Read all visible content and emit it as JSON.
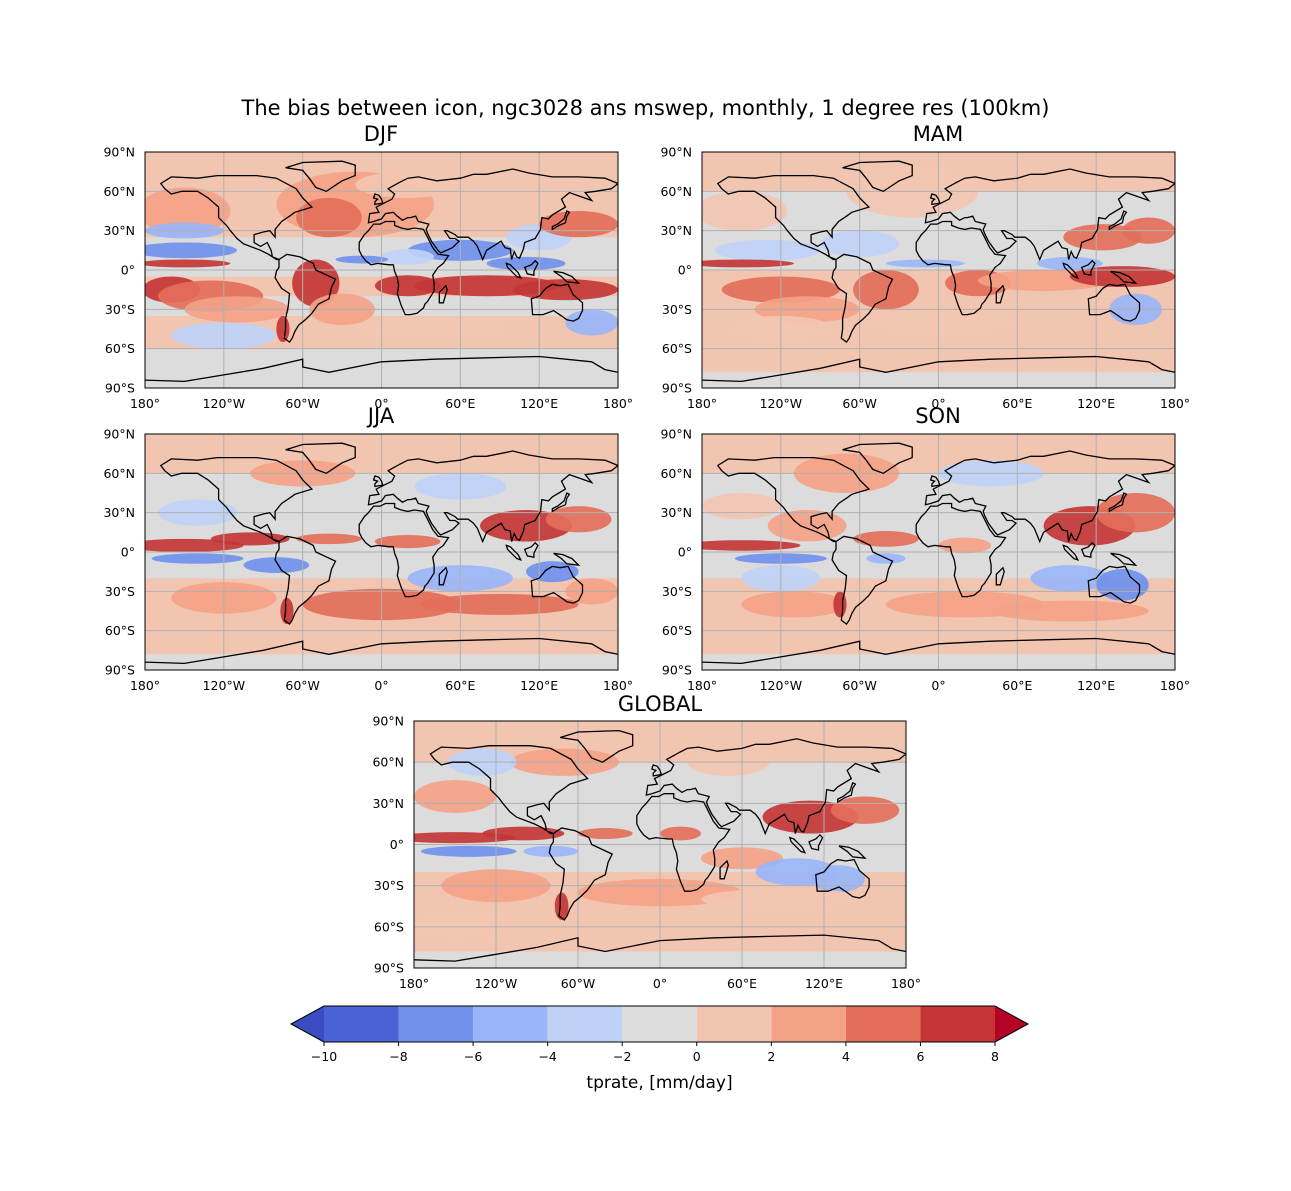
{
  "chart_data": {
    "type": "heatmap",
    "title": "The bias between icon, ngc3028 ans mswep, monthly, 1 degree res (100km)",
    "panels": [
      {
        "title": "DJF",
        "kind": "djf"
      },
      {
        "title": "MAM",
        "kind": "mam"
      },
      {
        "title": "JJA",
        "kind": "jja"
      },
      {
        "title": "SON",
        "kind": "son"
      },
      {
        "title": "GLOBAL",
        "kind": "global"
      }
    ],
    "lon_ticks": [
      "180°",
      "120°W",
      "60°W",
      "0°",
      "60°E",
      "120°E",
      "180°"
    ],
    "lat_ticks": [
      "90°N",
      "60°N",
      "30°N",
      "0°",
      "30°S",
      "60°S",
      "90°S"
    ],
    "xlim": [
      -180,
      180
    ],
    "ylim": [
      -90,
      90
    ],
    "grid": true,
    "colorbar": {
      "label": "tprate, [mm/day]",
      "levels": [
        -10,
        -8,
        -6,
        -4,
        -2,
        0,
        2,
        4,
        6,
        8
      ],
      "tick_labels": [
        "−10",
        "−8",
        "−6",
        "−4",
        "−2",
        "0",
        "2",
        "4",
        "6",
        "8"
      ],
      "colors": [
        "#4a62d6",
        "#7090ec",
        "#9ab5f8",
        "#bfd1f7",
        "#dcdcdc",
        "#f2c5b1",
        "#f4a287",
        "#e36f5a",
        "#c43636"
      ],
      "under_color": "#3b4cc0",
      "over_color": "#b40426",
      "extend": "both"
    }
  }
}
